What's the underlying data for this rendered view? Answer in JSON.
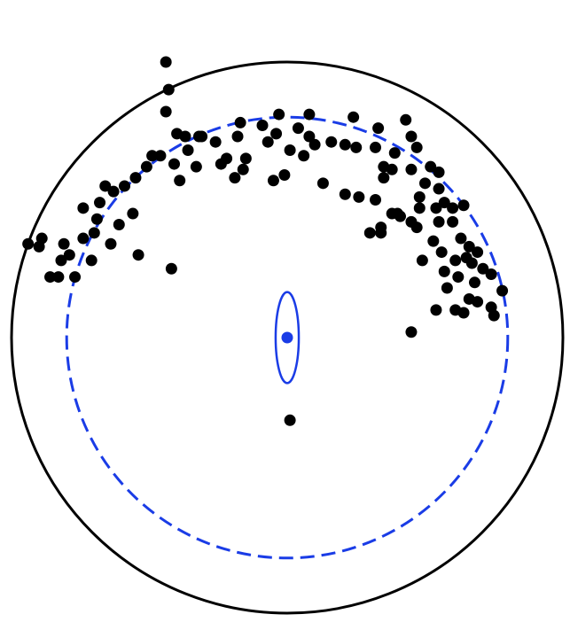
{
  "colors": {
    "primitive_circle": "#000000",
    "data_points": "#000000",
    "mean_vector": "#1a3ce6",
    "confidence_cone": "#1a3ce6",
    "small_circle": "#1a3ce6",
    "background": "#ffffff"
  },
  "chart_data": {
    "type": "scatter",
    "title": "",
    "xlabel": "",
    "ylabel": "",
    "grid": false,
    "legend": "none",
    "data_points": [
      [
        -0.44,
        -1.0
      ],
      [
        -0.43,
        -0.9
      ],
      [
        -0.44,
        -0.82
      ],
      [
        -0.4,
        -0.74
      ],
      [
        -0.36,
        -0.68
      ],
      [
        -0.33,
        -0.62
      ],
      [
        -0.31,
        -0.73
      ],
      [
        -0.26,
        -0.71
      ],
      [
        -0.18,
        -0.73
      ],
      [
        -0.15,
        -0.65
      ],
      [
        -0.09,
        -0.77
      ],
      [
        -0.03,
        -0.81
      ],
      [
        -0.04,
        -0.74
      ],
      [
        0.04,
        -0.76
      ],
      [
        0.08,
        -0.81
      ],
      [
        0.01,
        -0.68
      ],
      [
        -0.07,
        -0.71
      ],
      [
        0.06,
        -0.66
      ],
      [
        0.24,
        -0.8
      ],
      [
        0.16,
        -0.71
      ],
      [
        0.25,
        -0.69
      ],
      [
        0.21,
        -0.7
      ],
      [
        0.13,
        -0.56
      ],
      [
        -0.05,
        -0.57
      ],
      [
        -0.01,
        -0.59
      ],
      [
        -0.17,
        -0.78
      ],
      [
        0.08,
        -0.73
      ],
      [
        0.1,
        -0.7
      ],
      [
        0.21,
        -0.52
      ],
      [
        0.33,
        -0.76
      ],
      [
        0.32,
        -0.69
      ],
      [
        0.39,
        -0.67
      ],
      [
        0.38,
        -0.61
      ],
      [
        0.35,
        -0.58
      ],
      [
        0.32,
        -0.5
      ],
      [
        0.34,
        -0.38
      ],
      [
        0.43,
        -0.79
      ],
      [
        0.45,
        -0.73
      ],
      [
        0.47,
        -0.69
      ],
      [
        0.4,
        -0.45
      ],
      [
        0.45,
        -0.42
      ],
      [
        0.48,
        -0.51
      ],
      [
        0.52,
        -0.62
      ],
      [
        0.55,
        -0.42
      ],
      [
        0.57,
        -0.49
      ],
      [
        0.6,
        -0.42
      ],
      [
        0.63,
        -0.36
      ],
      [
        0.66,
        -0.33
      ],
      [
        0.69,
        -0.31
      ],
      [
        0.71,
        -0.25
      ],
      [
        0.74,
        -0.23
      ],
      [
        0.67,
        -0.27
      ],
      [
        0.6,
        -0.47
      ],
      [
        0.56,
        -0.31
      ],
      [
        0.47,
        -0.4
      ],
      [
        0.3,
        -0.38
      ],
      [
        0.26,
        -0.51
      ],
      [
        0.5,
        -0.56
      ],
      [
        0.57,
        -0.24
      ],
      [
        0.64,
        -0.48
      ],
      [
        0.55,
        -0.6
      ],
      [
        0.49,
        -0.28
      ],
      [
        0.34,
        -0.4
      ],
      [
        0.54,
        -0.47
      ],
      [
        0.55,
        -0.54
      ],
      [
        0.48,
        -0.47
      ],
      [
        0.35,
        -0.62
      ],
      [
        0.45,
        -0.61
      ],
      [
        -0.74,
        -0.36
      ],
      [
        -0.9,
        -0.33
      ],
      [
        -0.89,
        -0.36
      ],
      [
        -0.94,
        -0.34
      ],
      [
        -0.79,
        -0.3
      ],
      [
        -0.82,
        -0.28
      ],
      [
        -0.86,
        -0.22
      ],
      [
        -0.69,
        -0.43
      ],
      [
        -0.7,
        -0.38
      ],
      [
        -0.66,
        -0.55
      ],
      [
        -0.59,
        -0.55
      ],
      [
        -0.63,
        -0.53
      ],
      [
        -0.55,
        -0.58
      ],
      [
        -0.51,
        -0.62
      ],
      [
        -0.41,
        -0.63
      ],
      [
        -0.56,
        -0.45
      ],
      [
        -0.61,
        -0.41
      ],
      [
        -0.46,
        -0.66
      ],
      [
        -0.24,
        -0.63
      ],
      [
        -0.19,
        -0.58
      ],
      [
        -0.16,
        -0.61
      ],
      [
        -0.49,
        -0.66
      ],
      [
        -0.39,
        -0.57
      ],
      [
        -0.37,
        -0.73
      ],
      [
        -0.32,
        -0.73
      ],
      [
        -0.22,
        -0.65
      ],
      [
        -0.68,
        -0.49
      ],
      [
        -0.74,
        -0.47
      ],
      [
        -0.81,
        -0.34
      ],
      [
        -0.83,
        -0.22
      ],
      [
        -0.77,
        -0.22
      ],
      [
        -0.71,
        -0.28
      ],
      [
        -0.64,
        -0.34
      ],
      [
        -0.54,
        -0.3
      ],
      [
        -0.42,
        -0.25
      ],
      [
        0.54,
        -0.1
      ],
      [
        0.45,
        -0.02
      ],
      [
        0.61,
        -0.1
      ],
      [
        0.75,
        -0.08
      ],
      [
        0.69,
        -0.13
      ],
      [
        0.78,
        -0.17
      ],
      [
        0.58,
        -0.18
      ],
      [
        0.64,
        -0.09
      ],
      [
        0.74,
        -0.11
      ],
      [
        0.68,
        -0.2
      ],
      [
        0.62,
        -0.22
      ],
      [
        0.61,
        -0.28
      ],
      [
        0.65,
        -0.29
      ],
      [
        0.66,
        -0.14
      ],
      [
        0.53,
        -0.35
      ],
      [
        0.41,
        -0.44
      ],
      [
        0.38,
        -0.45
      ],
      [
        0.01,
        0.3
      ]
    ],
    "mean_vector": [
      0.0,
      0.0
    ],
    "small_circle": {
      "center": [
        0.0,
        0.0
      ],
      "radius": 0.8
    },
    "confidence_cone": {
      "center": [
        0.0,
        0.0
      ],
      "rx": 0.042,
      "ry": 0.165
    }
  }
}
